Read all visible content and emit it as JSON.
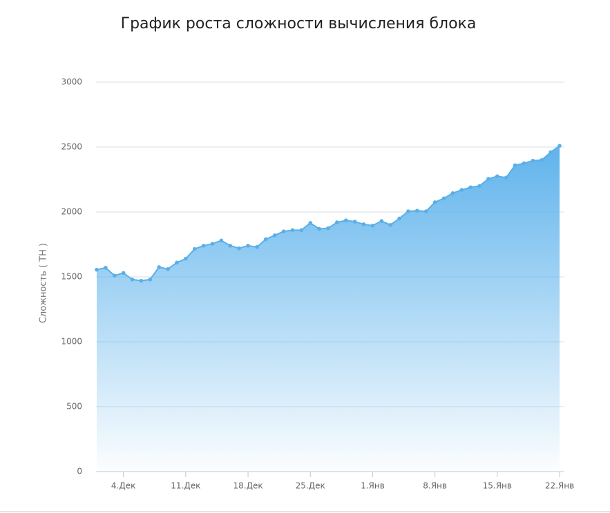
{
  "chart_data": {
    "type": "area",
    "title": "График роста сложности вычисления блока",
    "y_label": "Сложность ( TH )",
    "categories": [
      null,
      null,
      null,
      "4.Дек",
      null,
      null,
      null,
      null,
      null,
      null,
      "11.Дек",
      null,
      null,
      null,
      null,
      null,
      null,
      "18.Дек",
      null,
      null,
      null,
      null,
      null,
      null,
      "25.Дек",
      null,
      null,
      null,
      null,
      null,
      null,
      "1.Янв",
      null,
      null,
      null,
      null,
      null,
      null,
      "8.Янв",
      null,
      null,
      null,
      null,
      null,
      null,
      "15.Янв",
      null,
      null,
      null,
      null,
      null,
      null,
      "22.Янв"
    ],
    "values": [
      1555,
      1570,
      1510,
      1530,
      1480,
      1470,
      1480,
      1575,
      1560,
      1610,
      1640,
      1715,
      1740,
      1755,
      1780,
      1740,
      1720,
      1740,
      1730,
      1790,
      1820,
      1850,
      1860,
      1860,
      1915,
      1870,
      1875,
      1920,
      1935,
      1925,
      1905,
      1895,
      1930,
      1900,
      1950,
      2005,
      2010,
      2005,
      2075,
      2105,
      2145,
      2170,
      2190,
      2200,
      2255,
      2275,
      2265,
      2360,
      2375,
      2395,
      2400,
      2460,
      2510
    ],
    "color": "#5aafe8",
    "ylim": [
      0,
      3000
    ],
    "yticks": [
      0,
      500,
      1000,
      1500,
      2000,
      2500,
      3000
    ],
    "grid": true
  }
}
